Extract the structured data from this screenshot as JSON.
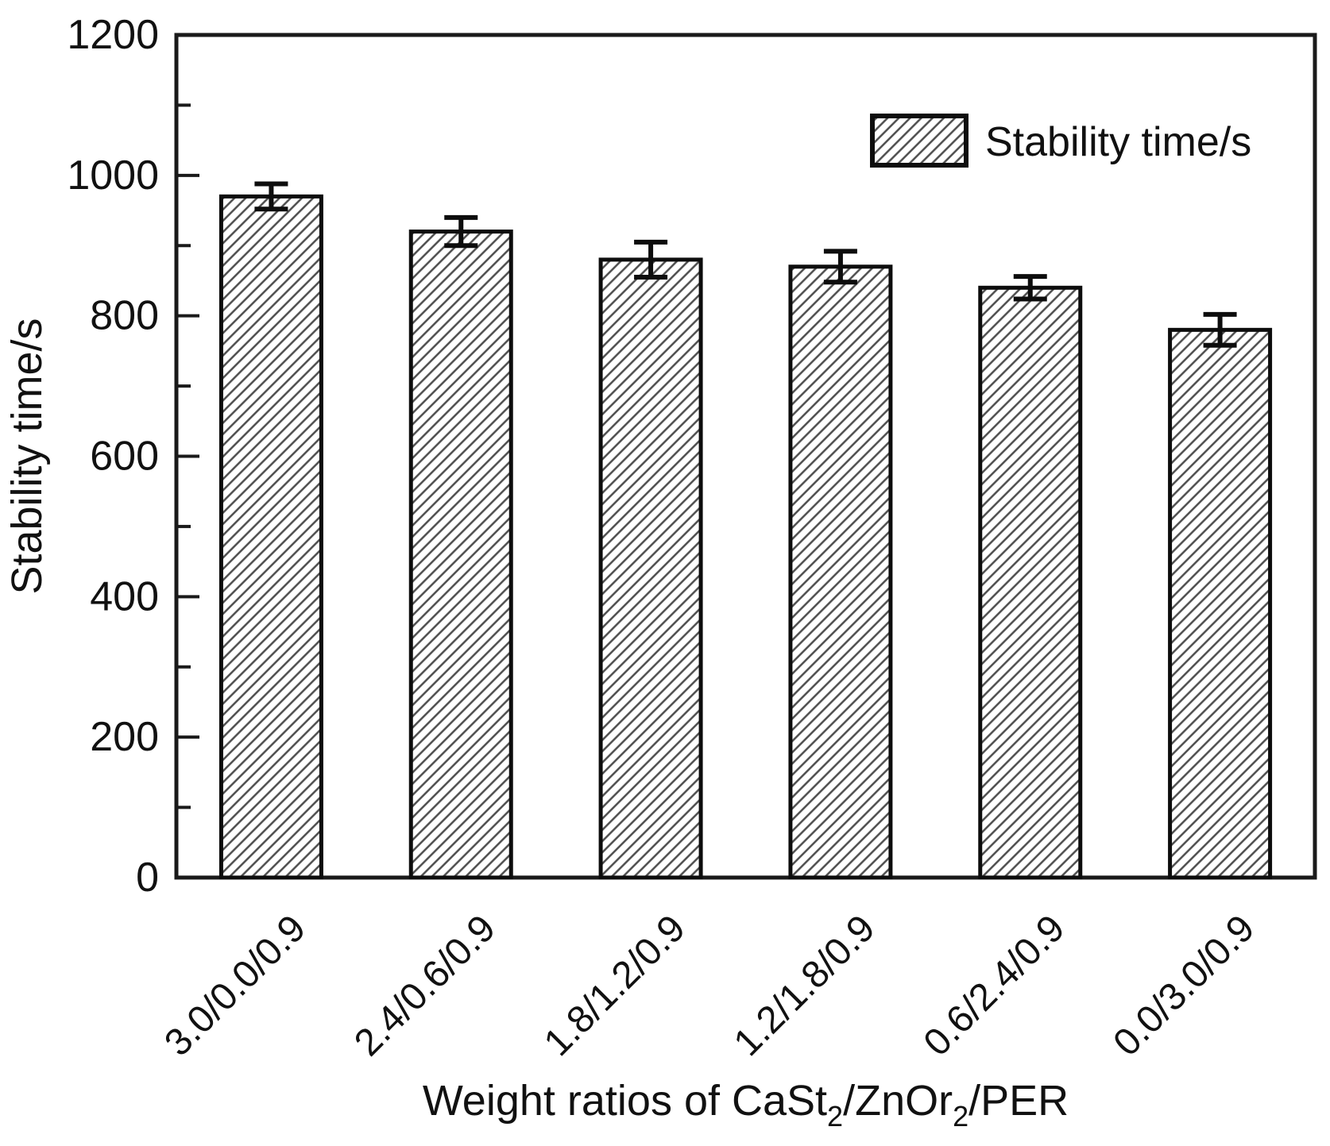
{
  "chart_data": {
    "type": "bar",
    "title": "",
    "categories": [
      "3.0/0.0/0.9",
      "2.4/0.6/0.9",
      "1.8/1.2/0.9",
      "1.2/1.8/0.9",
      "0.6/2.4/0.9",
      "0.0/3.0/0.9"
    ],
    "series": [
      {
        "name": "Stability time/s",
        "values": [
          970,
          920,
          880,
          870,
          840,
          780
        ],
        "errors": [
          18,
          20,
          25,
          22,
          16,
          22
        ]
      }
    ],
    "xlabel": "Weight ratios of CaSt2/ZnOr2/PER",
    "xlabel_parts": [
      {
        "text": "Weight ratios of CaSt",
        "sub": false
      },
      {
        "text": "2",
        "sub": true
      },
      {
        "text": "/ZnOr",
        "sub": false
      },
      {
        "text": "2",
        "sub": true
      },
      {
        "text": "/PER",
        "sub": false
      }
    ],
    "ylabel": "Stability time/s",
    "ylim": [
      0,
      1200
    ],
    "ytick_major_step": 200,
    "ytick_minor_step": 100,
    "yticks": [
      0,
      200,
      400,
      600,
      800,
      1000,
      1200
    ],
    "grid": false,
    "legend": {
      "label": "Stability time/s",
      "position": "top-right",
      "swatch": "diagonal-hatch"
    },
    "bar_style": {
      "fill": "#ffffff",
      "hatch": "forward-diagonal",
      "hatch_color": "#4d4d4d",
      "border_color": "#0d0d0d",
      "error_bar_color": "#0d0d0d"
    },
    "colors": {
      "axis": "#1a1a1a",
      "text": "#111111",
      "background": "#ffffff"
    }
  }
}
